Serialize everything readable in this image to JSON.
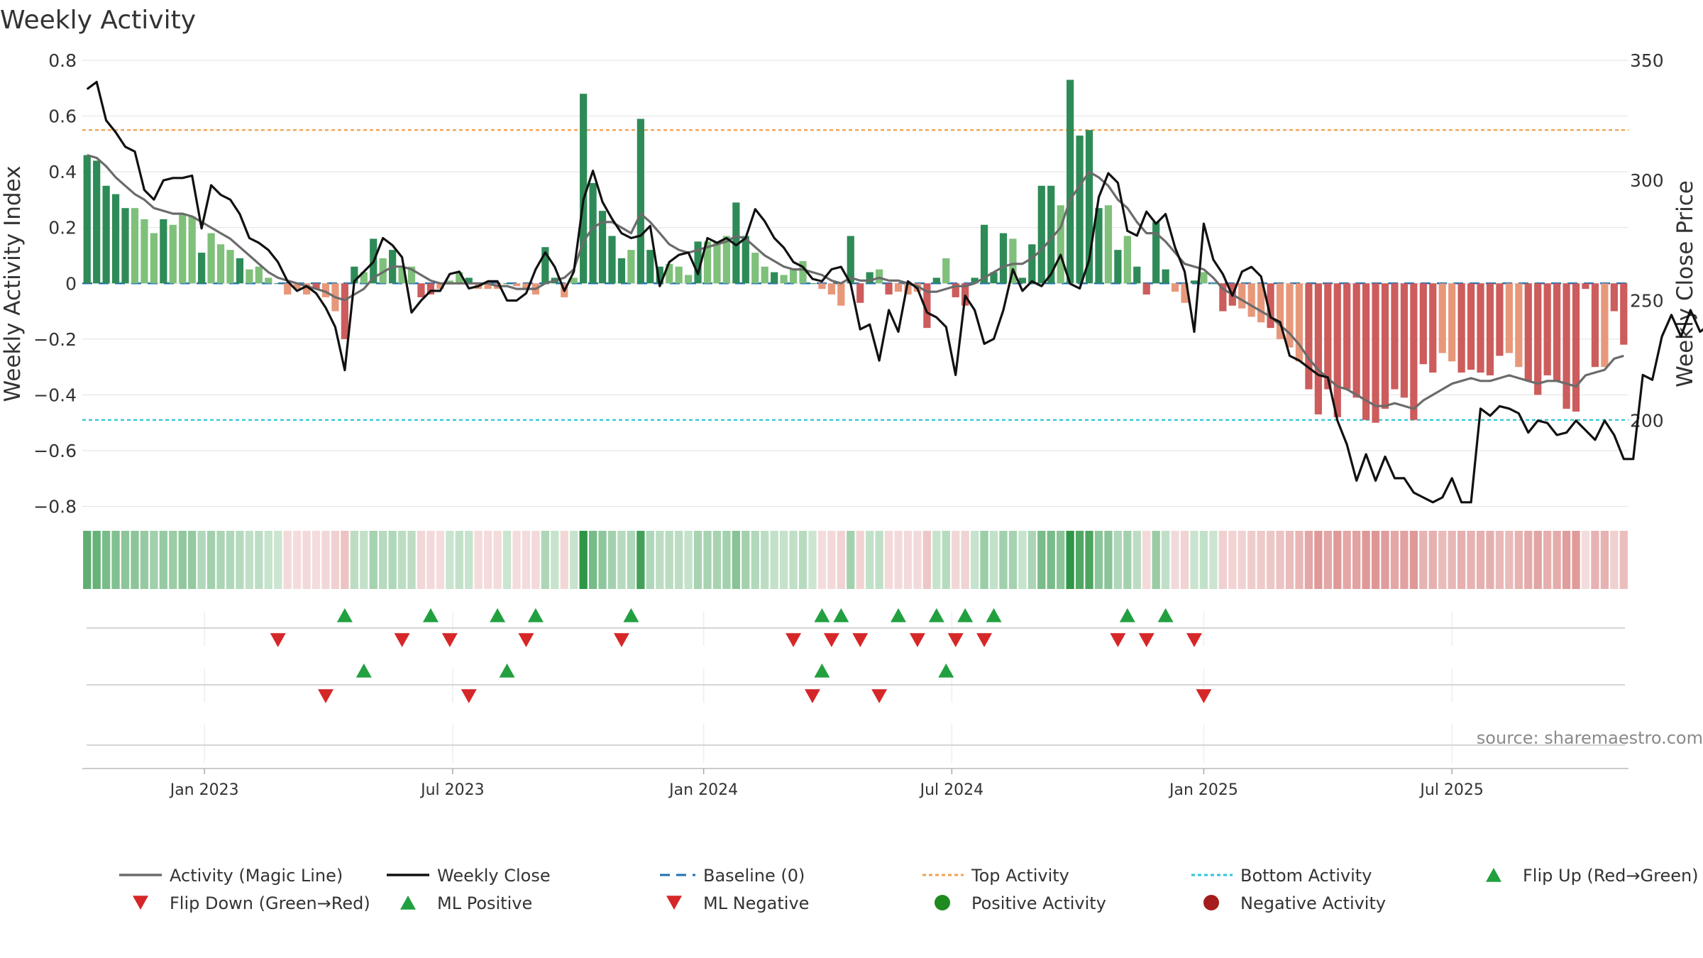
{
  "chart_data": {
    "type": "bar+line",
    "title": "Weekly Activity",
    "ylabel": "Weekly Activity Index",
    "y2label": "Weekly Close Price",
    "ylim": [
      -0.88,
      0.8
    ],
    "y2lim": [
      155,
      350
    ],
    "yticks": [
      0.8,
      0.6,
      0.4,
      0.2,
      0,
      -0.2,
      -0.4,
      -0.6,
      -0.8
    ],
    "ytick_labels": [
      "0.8",
      "0.6",
      "0.4",
      "0.2",
      "0",
      "−0.2",
      "−0.4",
      "−0.6",
      "−0.8"
    ],
    "y2ticks": [
      350,
      300,
      250,
      200
    ],
    "y2tick_labels": [
      "350",
      "300",
      "250",
      "200"
    ],
    "x_start": "2022-10-10",
    "week_step": 1,
    "xtick_labels": [
      "Jan 2023",
      "Jul 2023",
      "Jan 2024",
      "Jul 2024",
      "Jan 2025",
      "Jul 2025"
    ],
    "xtick_weeks": [
      12.3,
      38.3,
      64.6,
      90.6,
      117,
      143
    ],
    "top_activity": 0.55,
    "bottom_activity": -0.49,
    "baseline": 0,
    "activity": [
      0.46,
      0.44,
      0.35,
      0.32,
      0.27,
      0.27,
      0.23,
      0.18,
      0.23,
      0.21,
      0.25,
      0.24,
      0.11,
      0.18,
      0.14,
      0.12,
      0.09,
      0.05,
      0.06,
      0.02,
      0,
      -0.04,
      -0.02,
      -0.04,
      -0.02,
      -0.05,
      -0.1,
      -0.2,
      0.06,
      0.04,
      0.16,
      0.09,
      0.12,
      0.06,
      0.06,
      -0.05,
      -0.04,
      -0.02,
      0.01,
      0.04,
      0.02,
      -0.02,
      -0.02,
      -0.02,
      0,
      -0.01,
      -0.02,
      -0.04,
      0.13,
      0.02,
      -0.05,
      0.02,
      0.68,
      0.36,
      0.26,
      0.17,
      0.09,
      0.12,
      0.59,
      0.12,
      0.06,
      0.07,
      0.06,
      0.03,
      0.15,
      0.15,
      0.15,
      0.17,
      0.29,
      0.17,
      0.11,
      0.06,
      0.04,
      0.03,
      0.05,
      0.08,
      0,
      -0.02,
      -0.04,
      -0.08,
      0.17,
      -0.07,
      0.04,
      0.05,
      -0.04,
      -0.03,
      -0.04,
      -0.03,
      -0.16,
      0.02,
      0.09,
      -0.05,
      -0.08,
      0.02,
      0.21,
      0.04,
      0.18,
      0.16,
      0.02,
      0.14,
      0.35,
      0.35,
      0.28,
      0.73,
      0.53,
      0.55,
      0.27,
      0.28,
      0.12,
      0.17,
      0.06,
      -0.04,
      0.22,
      0.05,
      -0.03,
      -0.07,
      0.01,
      0.04,
      0,
      -0.1,
      -0.08,
      -0.09,
      -0.12,
      -0.14,
      -0.16,
      -0.2,
      -0.23,
      -0.28,
      -0.38,
      -0.47,
      -0.38,
      -0.48,
      -0.38,
      -0.41,
      -0.49,
      -0.5,
      -0.45,
      -0.38,
      -0.41,
      -0.49,
      -0.29,
      -0.32,
      -0.25,
      -0.28,
      -0.32,
      -0.31,
      -0.32,
      -0.33,
      -0.26,
      -0.25,
      -0.3,
      -0.35,
      -0.4,
      -0.33,
      -0.35,
      -0.45,
      -0.46,
      -0.02,
      -0.3,
      -0.3,
      -0.1,
      -0.22
    ],
    "magic_line": [
      0.46,
      0.45,
      0.42,
      0.38,
      0.35,
      0.32,
      0.3,
      0.27,
      0.26,
      0.25,
      0.25,
      0.24,
      0.22,
      0.2,
      0.18,
      0.16,
      0.13,
      0.1,
      0.07,
      0.04,
      0.02,
      0.01,
      0,
      -0.01,
      -0.02,
      -0.03,
      -0.05,
      -0.06,
      -0.04,
      -0.02,
      0.02,
      0.04,
      0.06,
      0.06,
      0.05,
      0.03,
      0.01,
      0,
      0,
      0,
      0,
      0,
      0,
      -0.01,
      -0.01,
      -0.02,
      -0.02,
      -0.02,
      0,
      0.01,
      0.02,
      0.05,
      0.15,
      0.2,
      0.22,
      0.22,
      0.2,
      0.18,
      0.25,
      0.22,
      0.18,
      0.14,
      0.12,
      0.11,
      0.12,
      0.13,
      0.14,
      0.15,
      0.17,
      0.16,
      0.13,
      0.1,
      0.08,
      0.06,
      0.05,
      0.05,
      0.04,
      0.03,
      0.01,
      0,
      0.02,
      0.01,
      0.01,
      0.02,
      0.01,
      0.01,
      0,
      -0.01,
      -0.03,
      -0.03,
      -0.02,
      -0.01,
      -0.01,
      0,
      0.02,
      0.04,
      0.06,
      0.07,
      0.07,
      0.09,
      0.12,
      0.16,
      0.2,
      0.3,
      0.35,
      0.4,
      0.38,
      0.35,
      0.3,
      0.27,
      0.22,
      0.18,
      0.18,
      0.15,
      0.11,
      0.07,
      0.06,
      0.05,
      0.02,
      -0.02,
      -0.04,
      -0.06,
      -0.08,
      -0.1,
      -0.12,
      -0.15,
      -0.18,
      -0.22,
      -0.27,
      -0.31,
      -0.34,
      -0.37,
      -0.38,
      -0.4,
      -0.42,
      -0.44,
      -0.44,
      -0.43,
      -0.44,
      -0.45,
      -0.42,
      -0.4,
      -0.38,
      -0.36,
      -0.35,
      -0.34,
      -0.35,
      -0.35,
      -0.34,
      -0.33,
      -0.34,
      -0.35,
      -0.36,
      -0.35,
      -0.35,
      -0.36,
      -0.37,
      -0.33,
      -0.32,
      -0.31,
      -0.27,
      -0.26
    ],
    "weekly_close": [
      338,
      341,
      325,
      320,
      314,
      312,
      296,
      292,
      300,
      301,
      301,
      302,
      280,
      298,
      294,
      292,
      286,
      276,
      274,
      271,
      266,
      258,
      254,
      256,
      253,
      247,
      239,
      221,
      258,
      262,
      266,
      276,
      273,
      268,
      245,
      250,
      254,
      254,
      261,
      262,
      255,
      256,
      258,
      258,
      250,
      250,
      253,
      263,
      270,
      264,
      254,
      262,
      292,
      304,
      291,
      284,
      278,
      276,
      277,
      281,
      256,
      266,
      269,
      270,
      261,
      276,
      274,
      276,
      273,
      276,
      288,
      283,
      276,
      272,
      266,
      264,
      259,
      258,
      263,
      264,
      257,
      238,
      240,
      225,
      246,
      237,
      258,
      255,
      245,
      243,
      239,
      219,
      252,
      246,
      232,
      234,
      246,
      263,
      254,
      258,
      256,
      261,
      269,
      257,
      255,
      267,
      293,
      303,
      299,
      279,
      277,
      287,
      282,
      286,
      272,
      262,
      237,
      282,
      267,
      261,
      252,
      262,
      264,
      260,
      243,
      241,
      227,
      225,
      222,
      219,
      218,
      200,
      190,
      175,
      186,
      175,
      185,
      176,
      176,
      170,
      168,
      166,
      168,
      176,
      166,
      166,
      205,
      202,
      206,
      205,
      203,
      195,
      200,
      199,
      194,
      195,
      200,
      196,
      192,
      200,
      194,
      184,
      184,
      219,
      217,
      235,
      244,
      235,
      246,
      237,
      240
    ]
  },
  "signal_rows": {
    "flip_up_weeks": [
      27,
      36,
      43,
      47,
      57,
      77,
      79,
      85,
      89,
      92,
      95,
      109,
      113
    ],
    "flip_down_weeks": [
      20,
      33,
      38,
      46,
      56,
      74,
      78,
      81,
      87,
      91,
      94,
      108,
      111,
      116
    ],
    "ml_positive_weeks": [
      29,
      44,
      77,
      90
    ],
    "ml_negative_weeks": [
      25,
      40,
      76,
      83,
      117
    ]
  },
  "source_text": "source: sharemaestro.com",
  "legend": [
    {
      "label": "Activity (Magic Line)",
      "kind": "line",
      "color": "#6b6b6b"
    },
    {
      "label": "Weekly Close",
      "kind": "line",
      "color": "#111111"
    },
    {
      "label": "Baseline (0)",
      "kind": "dashed",
      "color": "#1f6fb4"
    },
    {
      "label": "Top Activity",
      "kind": "dotted",
      "color": "#f0a050"
    },
    {
      "label": "Bottom Activity",
      "kind": "dotted",
      "color": "#2cc6d6"
    },
    {
      "label": "Flip Up (Red→Green)",
      "kind": "tri-up",
      "color": "#22a040"
    },
    {
      "label": "Flip Down (Green→Red)",
      "kind": "tri-down",
      "color": "#d62728"
    },
    {
      "label": "ML Positive",
      "kind": "tri-up",
      "color": "#22a040"
    },
    {
      "label": "ML Negative",
      "kind": "tri-down",
      "color": "#d62728"
    },
    {
      "label": "Positive Activity",
      "kind": "dot",
      "color": "#1f8a1f"
    },
    {
      "label": "Negative Activity",
      "kind": "dot",
      "color": "#a51c1c"
    }
  ],
  "colors": {
    "pos_strong": "#2e8b57",
    "pos_light": "#7fc07b",
    "neg_strong": "#cd5c5c",
    "neg_light": "#e8987a",
    "grid": "#e6e6e6"
  }
}
